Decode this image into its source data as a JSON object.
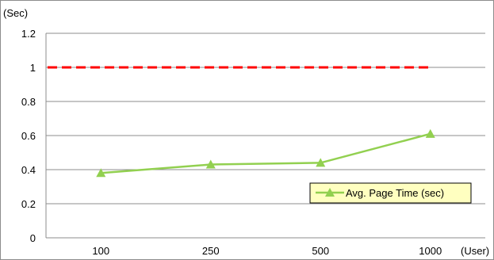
{
  "chart_data": {
    "type": "line",
    "title": "",
    "y_unit_label": "(Sec)",
    "x_unit_label": "(User)",
    "categories": [
      "100",
      "250",
      "500",
      "1000"
    ],
    "ylim": [
      0,
      1.2
    ],
    "y_ticks": [
      "0",
      "0.2",
      "0.4",
      "0.6",
      "0.8",
      "1",
      "1.2"
    ],
    "grid": true,
    "legend_position": "bottom-right",
    "series": [
      {
        "name": "Avg. Page Time (sec)",
        "values": [
          0.38,
          0.43,
          0.44,
          0.61
        ],
        "color": "#92d050",
        "marker": "triangle"
      }
    ],
    "reference_line": {
      "value": 1.0,
      "color": "#ff0000",
      "style": "dashed"
    },
    "legend_background": "#ffffc0"
  }
}
